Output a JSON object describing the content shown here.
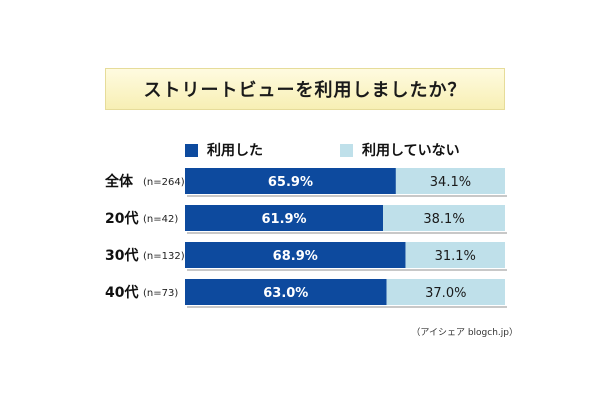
{
  "title": "ストリートビューを利用しましたか？",
  "source": "（アイシェア blogch.jp）",
  "colors": {
    "used": "#0d4a9e",
    "not_used": "#bfe0ea",
    "title_bg": "#fbf3c4"
  },
  "chart_data": {
    "type": "bar",
    "orientation": "horizontal",
    "stacked": true,
    "percent": true,
    "title": "ストリートビューを利用しましたか？",
    "legend": {
      "position": "top"
    },
    "xlim": [
      0,
      100
    ],
    "categories": [
      {
        "label": "全体",
        "n": "(n=264)"
      },
      {
        "label": "20代",
        "n": "(n=42)"
      },
      {
        "label": "30代",
        "n": "(n=132)"
      },
      {
        "label": "40代",
        "n": "(n=73)"
      }
    ],
    "series": [
      {
        "name": "利用した",
        "values": [
          65.9,
          61.9,
          68.9,
          63.0
        ],
        "labels": [
          "65.9%",
          "61.9%",
          "68.9%",
          "63.0%"
        ]
      },
      {
        "name": "利用していない",
        "values": [
          34.1,
          38.1,
          31.1,
          37.0
        ],
        "labels": [
          "34.1%",
          "38.1%",
          "31.1%",
          "37.0%"
        ]
      }
    ]
  }
}
